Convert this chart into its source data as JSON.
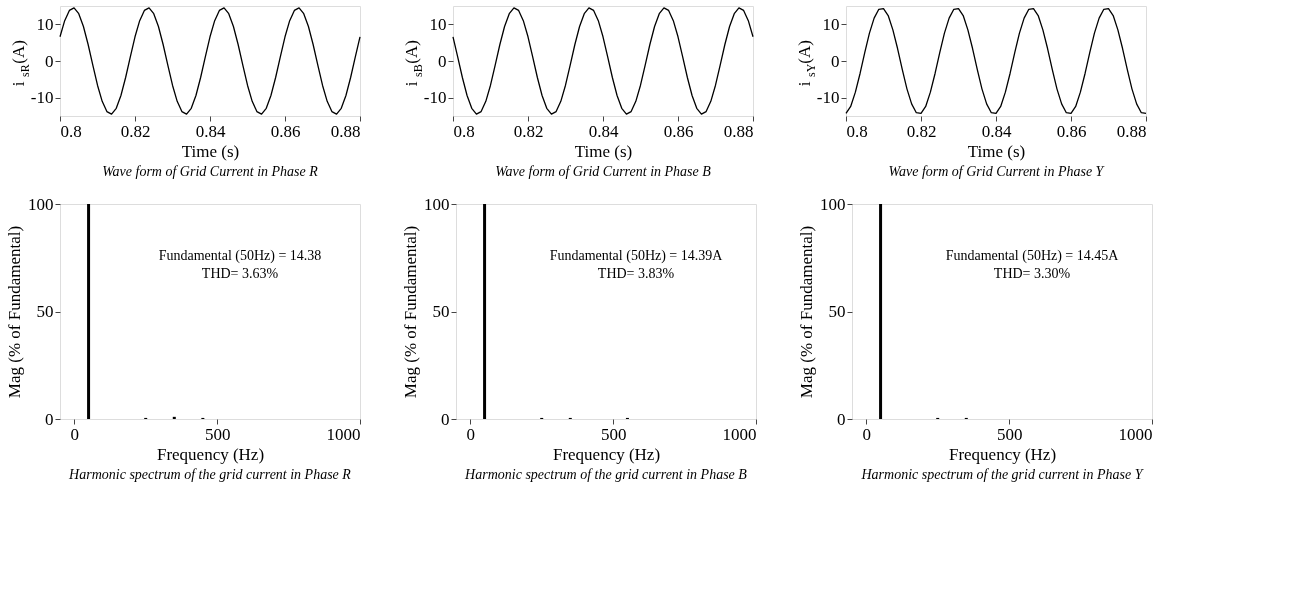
{
  "chart_data": [
    {
      "type": "line",
      "title": "Wave form of Grid Current in Phase R",
      "xlabel": "Time (s)",
      "ylabel": "i$_{sR}$(A)",
      "xlim": [
        0.8,
        0.88
      ],
      "ylim": [
        -15,
        15
      ],
      "xticks": [
        0.8,
        0.82,
        0.84,
        0.86,
        0.88
      ],
      "yticks": [
        -10,
        0,
        10
      ],
      "x": [
        0.8,
        0.80125,
        0.8025,
        0.80375,
        0.805,
        0.80625,
        0.8075,
        0.80875,
        0.81,
        0.81125,
        0.8125,
        0.81375,
        0.815,
        0.81625,
        0.8175,
        0.81875,
        0.82,
        0.82125,
        0.8225,
        0.82375,
        0.825,
        0.82625,
        0.8275,
        0.82875,
        0.83,
        0.83125,
        0.8325,
        0.83375,
        0.835,
        0.83625,
        0.8375,
        0.83875,
        0.84,
        0.84125,
        0.8425,
        0.84375,
        0.845,
        0.84625,
        0.8475,
        0.84875,
        0.85,
        0.85125,
        0.8525,
        0.85375,
        0.855,
        0.85625,
        0.8575,
        0.85875,
        0.86,
        0.86125,
        0.8625,
        0.86375,
        0.865,
        0.86625,
        0.8675,
        0.86875,
        0.87,
        0.87125,
        0.8725,
        0.87375,
        0.875,
        0.87625,
        0.8775,
        0.87875,
        0.88
      ],
      "series": [
        {
          "color": "#000000",
          "values": [
            6.6,
            11.0,
            13.8,
            14.5,
            12.9,
            9.4,
            4.5,
            -1.1,
            -6.6,
            -11.0,
            -13.8,
            -14.5,
            -12.9,
            -9.4,
            -4.5,
            1.1,
            6.6,
            11.0,
            13.8,
            14.5,
            12.9,
            9.4,
            4.5,
            -1.1,
            -6.6,
            -11.0,
            -13.8,
            -14.5,
            -12.9,
            -9.4,
            -4.5,
            1.1,
            6.6,
            11.0,
            13.8,
            14.5,
            12.9,
            9.4,
            4.5,
            -1.1,
            -6.6,
            -11.0,
            -13.8,
            -14.5,
            -12.9,
            -9.4,
            -4.5,
            1.1,
            6.6,
            11.0,
            13.8,
            14.5,
            12.9,
            9.4,
            4.5,
            -1.1,
            -6.6,
            -11.0,
            -13.8,
            -14.5,
            -12.9,
            -9.4,
            -4.5,
            1.1,
            6.6
          ]
        }
      ]
    },
    {
      "type": "line",
      "title": "Wave form of Grid Current in Phase B",
      "xlabel": "Time (s)",
      "ylabel": "i$_{sB}$(A)",
      "xlim": [
        0.8,
        0.88
      ],
      "ylim": [
        -15,
        15
      ],
      "xticks": [
        0.8,
        0.82,
        0.84,
        0.86,
        0.88
      ],
      "yticks": [
        -10,
        0,
        10
      ],
      "x": [
        0.8,
        0.80125,
        0.8025,
        0.80375,
        0.805,
        0.80625,
        0.8075,
        0.80875,
        0.81,
        0.81125,
        0.8125,
        0.81375,
        0.815,
        0.81625,
        0.8175,
        0.81875,
        0.82,
        0.82125,
        0.8225,
        0.82375,
        0.825,
        0.82625,
        0.8275,
        0.82875,
        0.83,
        0.83125,
        0.8325,
        0.83375,
        0.835,
        0.83625,
        0.8375,
        0.83875,
        0.84,
        0.84125,
        0.8425,
        0.84375,
        0.845,
        0.84625,
        0.8475,
        0.84875,
        0.85,
        0.85125,
        0.8525,
        0.85375,
        0.855,
        0.85625,
        0.8575,
        0.85875,
        0.86,
        0.86125,
        0.8625,
        0.86375,
        0.865,
        0.86625,
        0.8675,
        0.86875,
        0.87,
        0.87125,
        0.8725,
        0.87375,
        0.875,
        0.87625,
        0.8775,
        0.87875,
        0.88
      ],
      "series": [
        {
          "color": "#000000",
          "values": [
            6.6,
            1.1,
            -4.5,
            -9.4,
            -12.9,
            -14.5,
            -13.8,
            -11.0,
            -6.6,
            -1.1,
            4.5,
            9.4,
            12.9,
            14.5,
            13.8,
            11.0,
            6.6,
            1.1,
            -4.5,
            -9.4,
            -12.9,
            -14.5,
            -13.8,
            -11.0,
            -6.6,
            -1.1,
            4.5,
            9.4,
            12.9,
            14.5,
            13.8,
            11.0,
            6.6,
            1.1,
            -4.5,
            -9.4,
            -12.9,
            -14.5,
            -13.8,
            -11.0,
            -6.6,
            -1.1,
            4.5,
            9.4,
            12.9,
            14.5,
            13.8,
            11.0,
            6.6,
            1.1,
            -4.5,
            -9.4,
            -12.9,
            -14.5,
            -13.8,
            -11.0,
            -6.6,
            -1.1,
            4.5,
            9.4,
            12.9,
            14.5,
            13.8,
            11.0,
            6.6
          ]
        }
      ]
    },
    {
      "type": "line",
      "title": "Wave form of Grid Current in Phase Y",
      "xlabel": "Time (s)",
      "ylabel": "i$_{sY}$(A)",
      "xlim": [
        0.8,
        0.88
      ],
      "ylim": [
        -15,
        15
      ],
      "xticks": [
        0.8,
        0.82,
        0.84,
        0.86,
        0.88
      ],
      "yticks": [
        -10,
        0,
        10
      ],
      "x": [
        0.8,
        0.80125,
        0.8025,
        0.80375,
        0.805,
        0.80625,
        0.8075,
        0.80875,
        0.81,
        0.81125,
        0.8125,
        0.81375,
        0.815,
        0.81625,
        0.8175,
        0.81875,
        0.82,
        0.82125,
        0.8225,
        0.82375,
        0.825,
        0.82625,
        0.8275,
        0.82875,
        0.83,
        0.83125,
        0.8325,
        0.83375,
        0.835,
        0.83625,
        0.8375,
        0.83875,
        0.84,
        0.84125,
        0.8425,
        0.84375,
        0.845,
        0.84625,
        0.8475,
        0.84875,
        0.85,
        0.85125,
        0.8525,
        0.85375,
        0.855,
        0.85625,
        0.8575,
        0.85875,
        0.86,
        0.86125,
        0.8625,
        0.86375,
        0.865,
        0.86625,
        0.8675,
        0.86875,
        0.87,
        0.87125,
        0.8725,
        0.87375,
        0.875,
        0.87625,
        0.8775,
        0.87875,
        0.88
      ],
      "series": [
        {
          "color": "#000000",
          "values": [
            -14.3,
            -12.4,
            -8.5,
            -3.4,
            2.3,
            7.6,
            11.7,
            14.1,
            14.3,
            12.4,
            8.5,
            3.4,
            -2.3,
            -7.6,
            -11.7,
            -14.1,
            -14.3,
            -12.4,
            -8.5,
            -3.4,
            2.3,
            7.6,
            11.7,
            14.1,
            14.3,
            12.4,
            8.5,
            3.4,
            -2.3,
            -7.6,
            -11.7,
            -14.1,
            -14.3,
            -12.4,
            -8.5,
            -3.4,
            2.3,
            7.6,
            11.7,
            14.1,
            14.3,
            12.4,
            8.5,
            3.4,
            -2.3,
            -7.6,
            -11.7,
            -14.1,
            -14.3,
            -12.4,
            -8.5,
            -3.4,
            2.3,
            7.6,
            11.7,
            14.1,
            14.3,
            12.4,
            8.5,
            3.4,
            -2.3,
            -7.6,
            -11.7,
            -14.1,
            -14.3
          ]
        }
      ]
    },
    {
      "type": "bar",
      "title": "Harmonic spectrum of the grid current in Phase R",
      "xlabel": "Frequency (Hz)",
      "ylabel": "Mag (% of Fundamental)",
      "xlim": [
        -50,
        1000
      ],
      "ylim": [
        0,
        100
      ],
      "xticks": [
        0,
        500,
        1000
      ],
      "yticks": [
        0,
        50,
        100
      ],
      "annotations": [
        "Fundamental (50Hz) = 14.38",
        "THD= 3.63%"
      ],
      "x": [
        50,
        250,
        350,
        450
      ],
      "series": [
        {
          "color": "#000000",
          "values": [
            100,
            0.5,
            1,
            0.5
          ]
        }
      ]
    },
    {
      "type": "bar",
      "title": "Harmonic spectrum of the grid current in Phase B",
      "xlabel": "Frequency (Hz)",
      "ylabel": "Mag (% of Fundamental)",
      "xlim": [
        -50,
        1000
      ],
      "ylim": [
        0,
        100
      ],
      "xticks": [
        0,
        500,
        1000
      ],
      "yticks": [
        0,
        50,
        100
      ],
      "annotations": [
        "Fundamental (50Hz) = 14.39A",
        "THD= 3.83%"
      ],
      "x": [
        50,
        250,
        350,
        550
      ],
      "series": [
        {
          "color": "#000000",
          "values": [
            100,
            0.5,
            0.5,
            0.5
          ]
        }
      ]
    },
    {
      "type": "bar",
      "title": "Harmonic spectrum of the grid current in Phase Y",
      "xlabel": "Frequency (Hz)",
      "ylabel": "Mag (% of Fundamental)",
      "xlim": [
        -50,
        1000
      ],
      "ylim": [
        0,
        100
      ],
      "xticks": [
        0,
        500,
        1000
      ],
      "yticks": [
        0,
        50,
        100
      ],
      "annotations": [
        "Fundamental (50Hz) = 14.45A",
        "THD= 3.30%"
      ],
      "x": [
        50,
        250,
        350
      ],
      "series": [
        {
          "color": "#000000",
          "values": [
            100,
            0.5,
            0.5
          ]
        }
      ]
    }
  ]
}
